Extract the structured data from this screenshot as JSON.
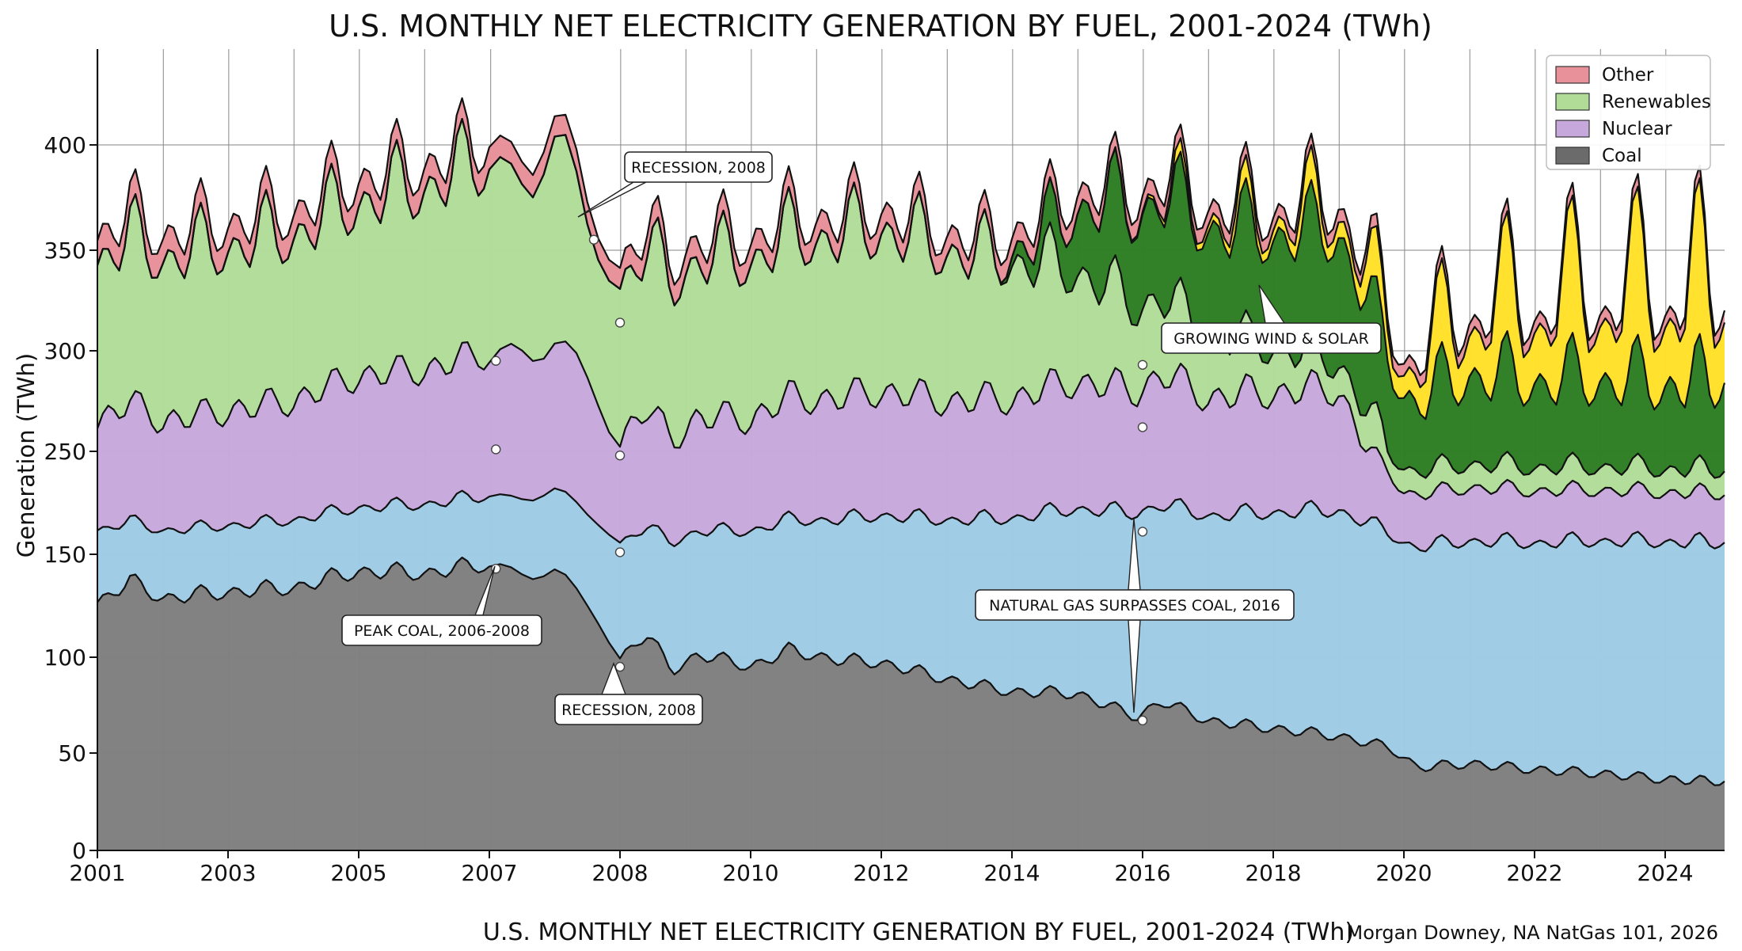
{
  "chart_data": {
    "type": "area",
    "title": "U.S. MONTHLY NET ELECTRICITY GENERATION BY FUEL, 2001-2024 (TWh)",
    "caption": "U.S. MONTHLY NET ELECTRICITY GENERATION BY FUEL, 2001-2024 (TWh)",
    "credit": "Morgan Downey, NA NatGas 101, 2026",
    "xlabel": "",
    "ylabel": "Generation (TWh)",
    "xlim": [
      2001,
      2025.0
    ],
    "ylim": [
      0,
      450
    ],
    "x_ticks": [
      2001,
      2003,
      2005,
      2007,
      2008,
      2010,
      2012,
      2014,
      2016,
      2018,
      2020,
      2022,
      2024
    ],
    "y_ticks": [
      0,
      50,
      100,
      150,
      250,
      300,
      350,
      400
    ],
    "y_tick_labels": [
      "0",
      "50",
      "100",
      "150",
      "250",
      "300",
      "350",
      "400"
    ],
    "grid": true,
    "legend": {
      "position": "top-right",
      "entries": [
        {
          "label": "Other",
          "color": "#e8919a"
        },
        {
          "label": "Renewables",
          "color": "#b0dc98"
        },
        {
          "label": "Nuclear",
          "color": "#c7a8dc"
        },
        {
          "label": "Coal",
          "color": "#6b6b6b"
        }
      ]
    },
    "colors": {
      "coal": "#808080",
      "gas": "#9ecbe4",
      "nuclear": "#c7a8dc",
      "hydro": "#b0dc98",
      "wind": "#2e7d24",
      "solar": "#ffe02a",
      "other": "#e8919a"
    },
    "annual_top_values": [
      {
        "year": 2001,
        "coal": 130,
        "gas_top": 177,
        "nuclear_top": 273,
        "renew_top": 366
      },
      {
        "year": 2004,
        "coal": 135,
        "gas_top": 180,
        "nuclear_top": 275,
        "renew_top": 372
      },
      {
        "year": 2007,
        "coal": 143,
        "gas_top": 197,
        "nuclear_top": 292,
        "renew_top": 420
      },
      {
        "year": 2008,
        "coal": 100,
        "gas_top": 162,
        "nuclear_top": 258,
        "renew_top": 362
      },
      {
        "year": 2012,
        "coal": 98,
        "gas_top": 178,
        "nuclear_top": 268,
        "renew_top": 368
      },
      {
        "year": 2016,
        "coal": 70,
        "gas_top": 190,
        "nuclear_top": 278,
        "renew_top": 380
      },
      {
        "year": 2020,
        "coal": 45,
        "gas_top": 138,
        "nuclear_top": 185,
        "renew_top": 355
      },
      {
        "year": 2024,
        "coal": 35,
        "gas_top": 148,
        "nuclear_top": 196,
        "renew_top": 368
      }
    ],
    "annotations": [
      {
        "text": "RECESSION, 2008",
        "point": [
          2007.8,
          355
        ]
      },
      {
        "text": "RECESSION, 2008",
        "point": [
          2008.0,
          95
        ]
      },
      {
        "text": "PEAK COAL, 2006-2008",
        "point": [
          2007.1,
          143
        ]
      },
      {
        "text": "GROWING WIND & SOLAR",
        "point": [
          2017.5,
          300
        ]
      },
      {
        "text": "NATURAL GAS SURPASSES COAL, 2016",
        "point": [
          2016.0,
          67
        ]
      }
    ],
    "markers": [
      {
        "x": 2007.05,
        "y": 295
      },
      {
        "x": 2007.05,
        "y": 251
      },
      {
        "x": 2007.05,
        "y": 143
      },
      {
        "x": 2007.8,
        "y": 355
      },
      {
        "x": 2008.0,
        "y": 314
      },
      {
        "x": 2008.0,
        "y": 246
      },
      {
        "x": 2008.0,
        "y": 152
      },
      {
        "x": 2008.0,
        "y": 95
      },
      {
        "x": 2016.0,
        "y": 293
      },
      {
        "x": 2016.0,
        "y": 262
      },
      {
        "x": 2016.0,
        "y": 172
      },
      {
        "x": 2016.0,
        "y": 67
      }
    ]
  }
}
